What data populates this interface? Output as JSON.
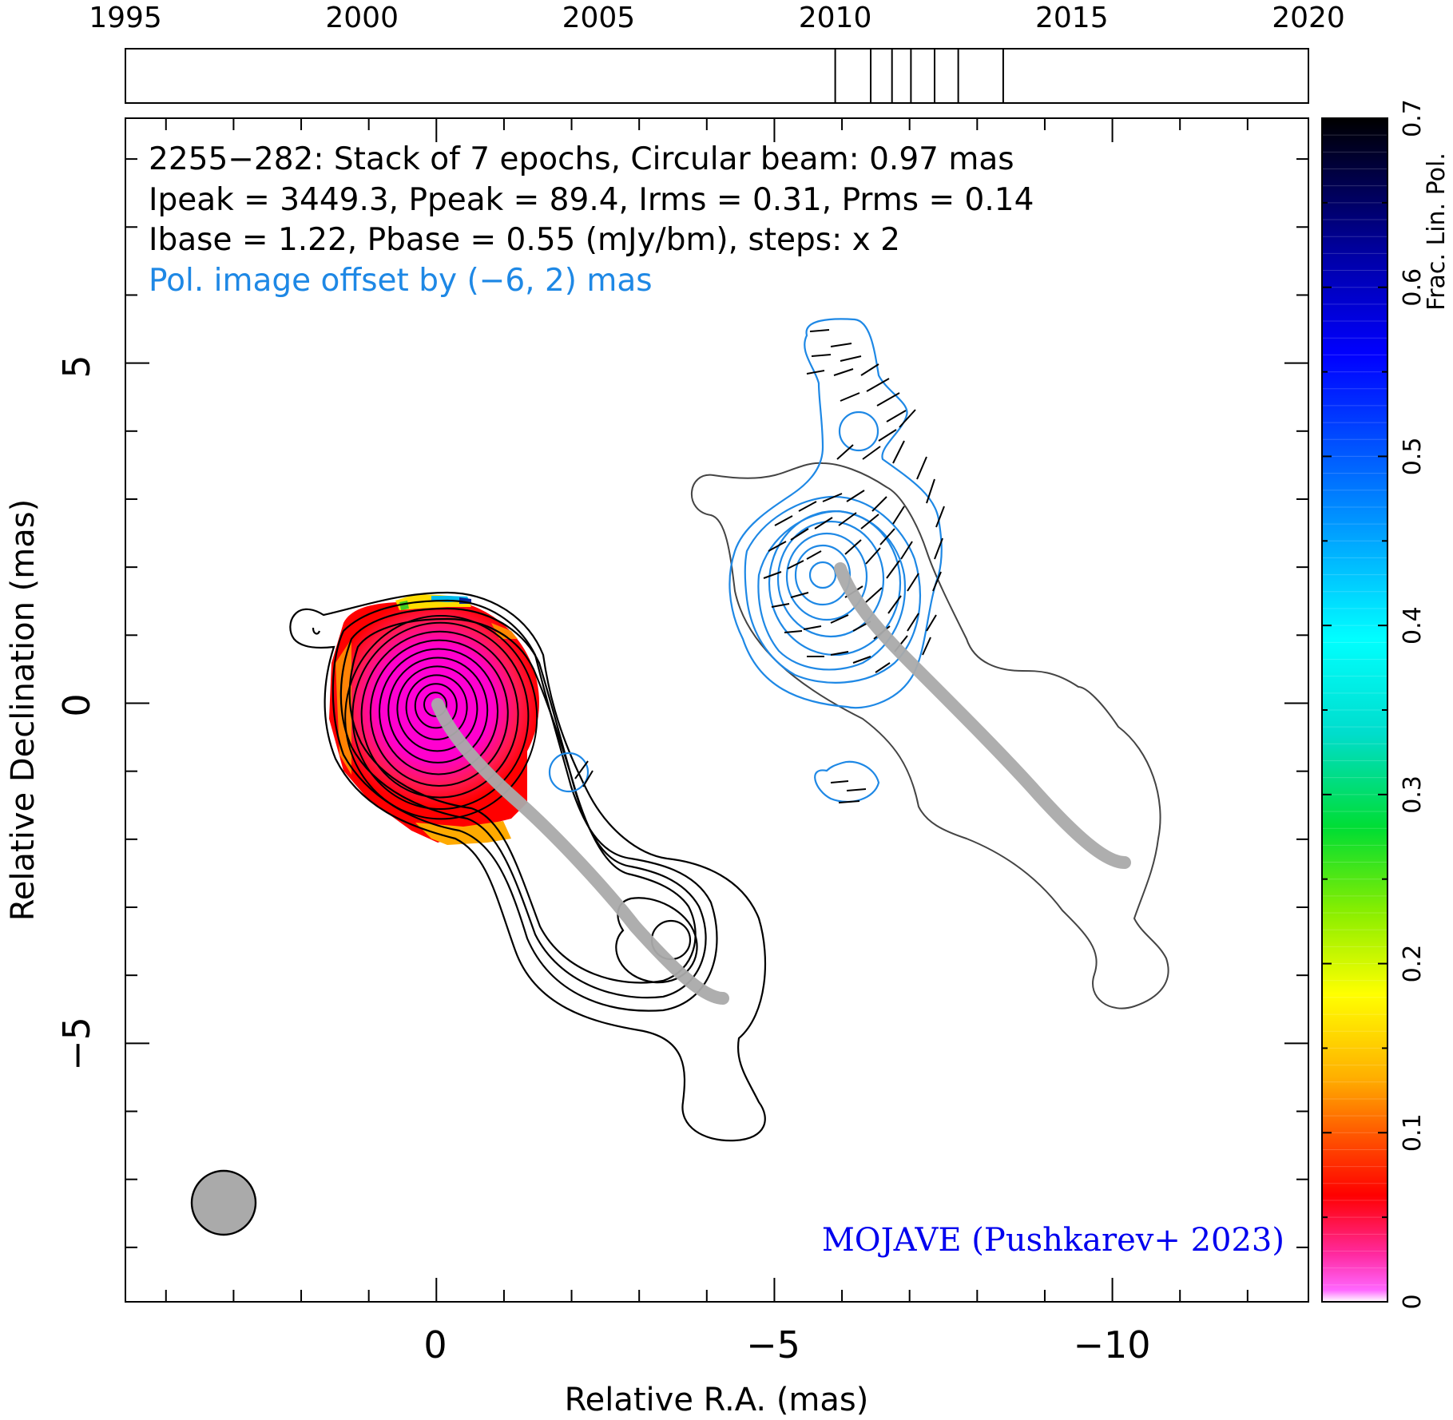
{
  "timeline": {
    "years": [
      "1995",
      "2000",
      "2005",
      "2010",
      "2015",
      "2020"
    ],
    "range": [
      1995,
      2020
    ],
    "epochs": [
      2010.0,
      2010.75,
      2011.2,
      2011.6,
      2012.1,
      2012.6,
      2013.55
    ]
  },
  "header": {
    "line1": "2255−282: Stack of 7 epochs, Circular beam: 0.97 mas",
    "line2": "Ipeak = 3449.3, Ppeak = 89.4, Irms = 0.31, Prms = 0.14",
    "line3": "Ibase = 1.22, Pbase = 0.55 (mJy/bm), steps: x 2",
    "offset_note": "Pol. image offset by (−6, 2) mas"
  },
  "credit": "MOJAVE (Pushkarev+ 2023)",
  "colorbar": {
    "label": "Frac. Lin. Pol.",
    "ticks": [
      "0",
      "0.1",
      "0.2",
      "0.3",
      "0.4",
      "0.5",
      "0.6",
      "0.7"
    ],
    "range": [
      0,
      0.7
    ]
  },
  "chart_data": {
    "type": "heatmap",
    "xlabel": "Relative R.A. (mas)",
    "ylabel": "Relative Declination (mas)",
    "xlim": [
      4.6,
      -12.9
    ],
    "ylim": [
      -8.8,
      8.6
    ],
    "x_ticks": [
      "0",
      "−5",
      "−10"
    ],
    "y_ticks": [
      "−5",
      "0",
      "5"
    ],
    "beam_fwhm_mas": 0.97,
    "core": [
      0,
      0
    ],
    "ridge_line": [
      [
        0,
        0
      ],
      [
        -0.8,
        -0.7
      ],
      [
        -1.6,
        -1.4
      ],
      [
        -2.4,
        -2.1
      ],
      [
        -3.2,
        -3.0
      ],
      [
        -3.9,
        -3.8
      ],
      [
        -4.3,
        -4.3
      ]
    ],
    "pol_offset_mas": [
      -6,
      2
    ],
    "colors": {
      "stokes_i_contours": "#000000",
      "pol_contours": "#1e88e5",
      "ridge": "#aaaaaa",
      "annotation_blue": "#1e88e5",
      "credit_blue": "#0000ee"
    }
  }
}
